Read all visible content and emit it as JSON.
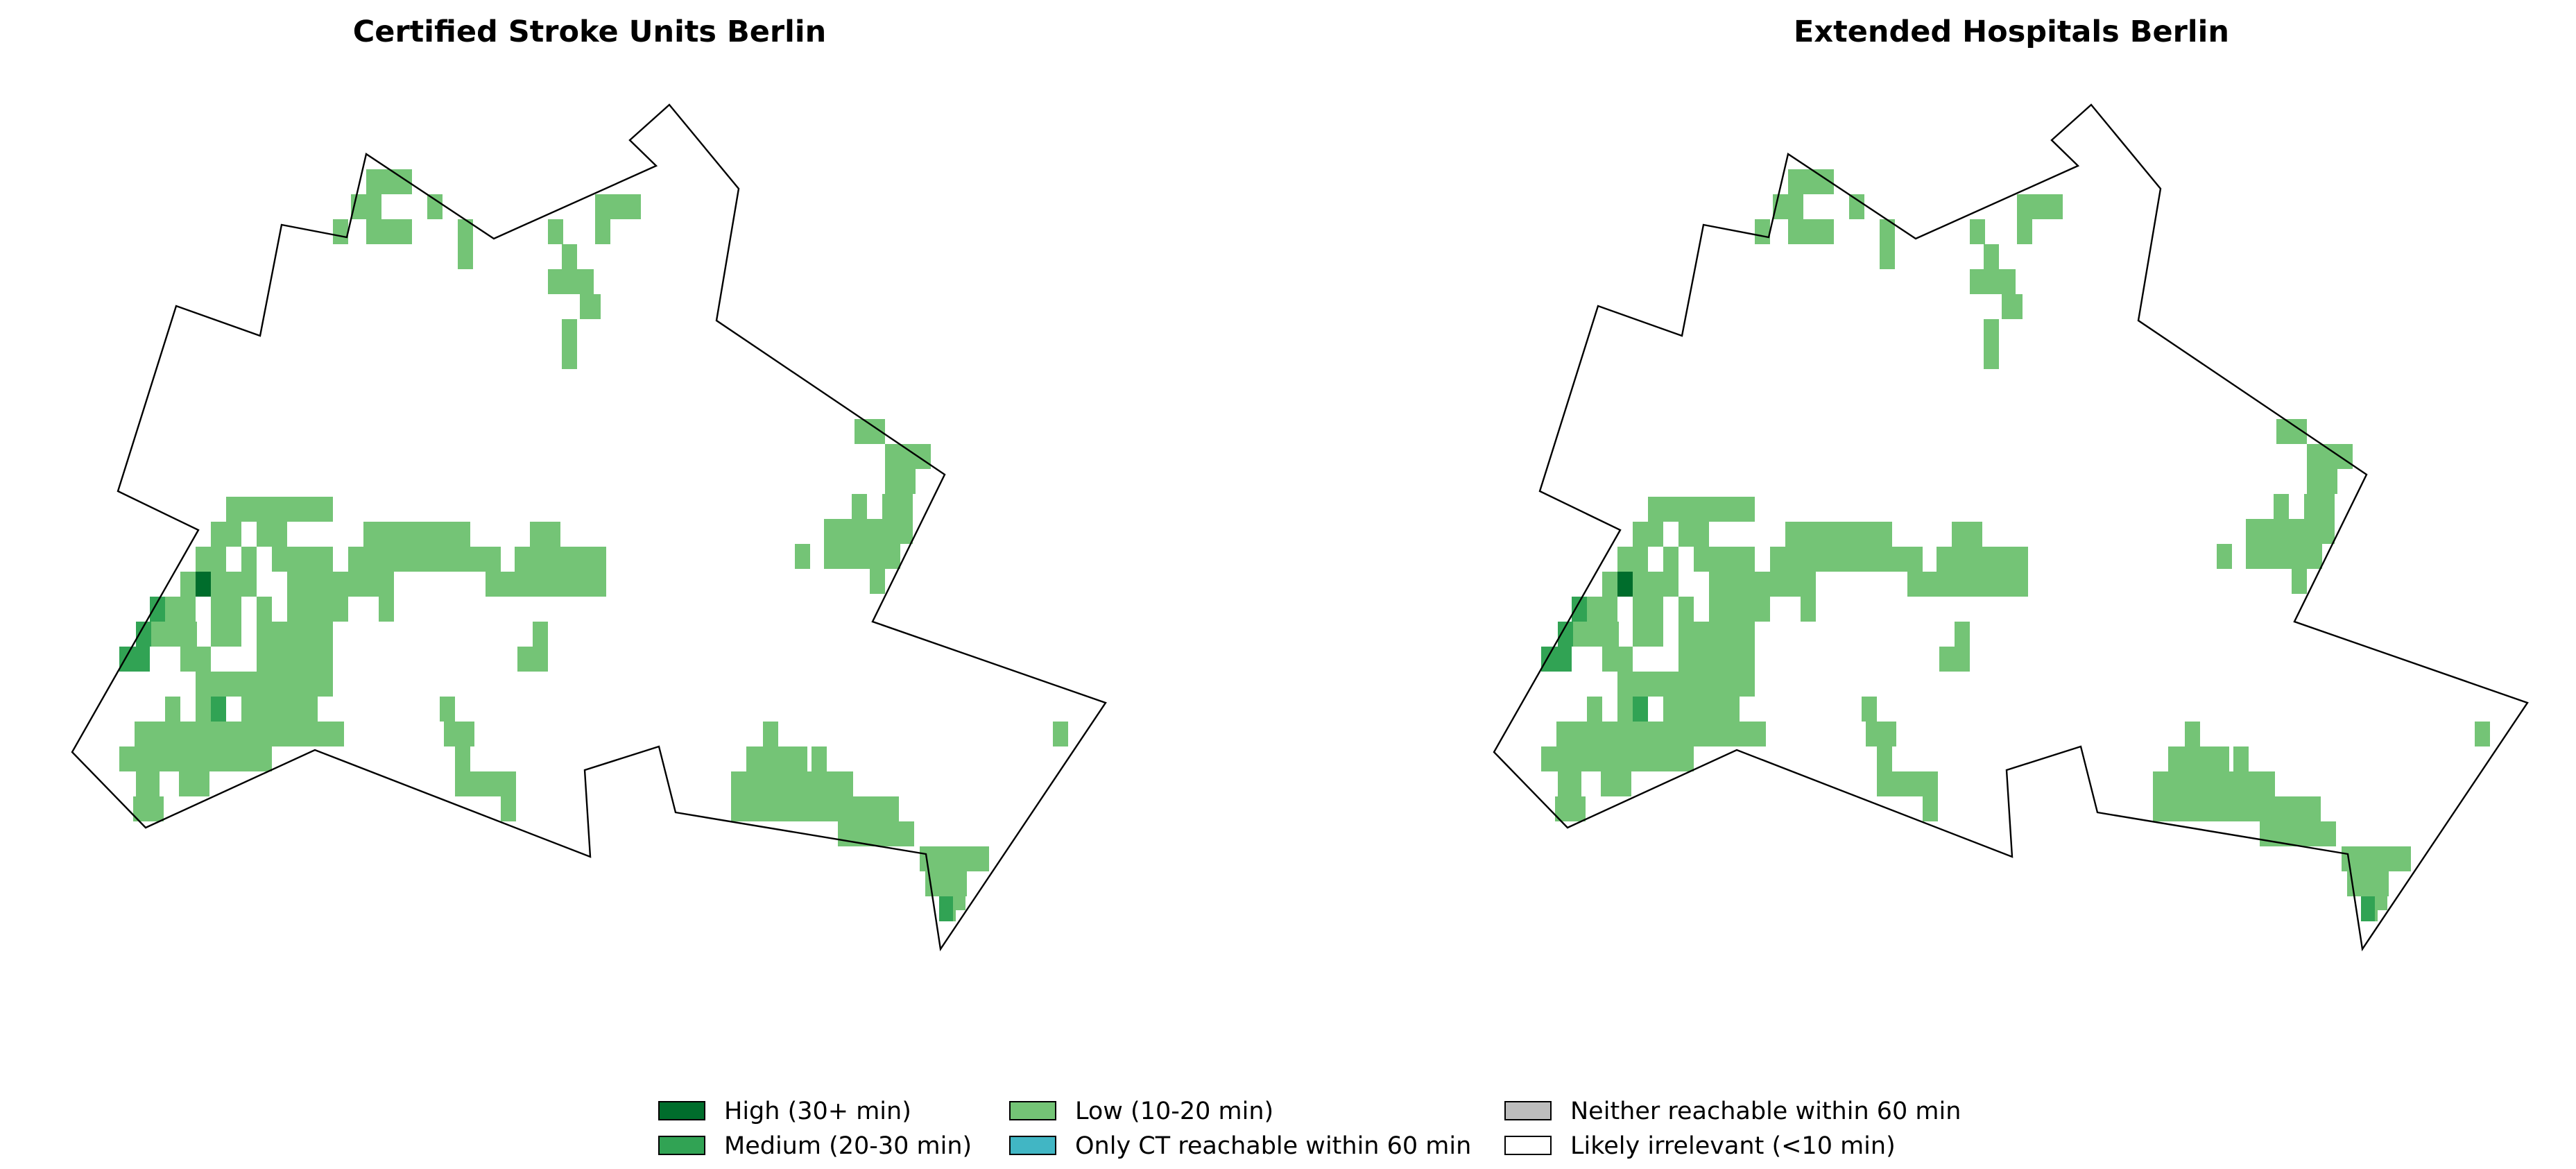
{
  "maps": [
    {
      "id": "certified",
      "title": "Certified Stroke Units Berlin"
    },
    {
      "id": "extended",
      "title": "Extended Hospitals Berlin"
    }
  ],
  "legend": [
    {
      "key": "high",
      "label": "High (30+ min)",
      "color": "#006d2c"
    },
    {
      "key": "medium",
      "label": "Medium (20-30 min)",
      "color": "#31a354"
    },
    {
      "key": "low",
      "label": "Low (10-20 min)",
      "color": "#74c476"
    },
    {
      "key": "ct_only",
      "label": "Only CT reachable within 60 min",
      "color": "#41b6c4"
    },
    {
      "key": "neither",
      "label": "Neither reachable within 60 min",
      "color": "#bdbdbd"
    },
    {
      "key": "irrelevant",
      "label": "Likely irrelevant (<10 min)",
      "color": "#ffffff"
    }
  ]
}
